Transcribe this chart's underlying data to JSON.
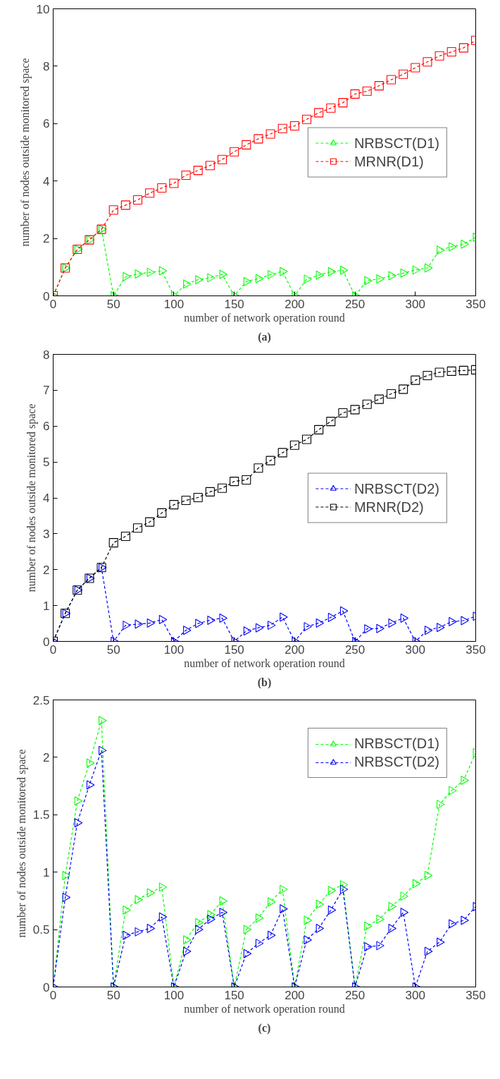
{
  "chart_data": [
    {
      "type": "line",
      "xlabel": "number of network operation round",
      "ylabel": "number of nodes outside monitored space",
      "annotations": [
        "(a)"
      ],
      "x": [
        0,
        10,
        20,
        30,
        40,
        50,
        60,
        70,
        80,
        90,
        100,
        110,
        120,
        130,
        140,
        150,
        160,
        170,
        180,
        190,
        200,
        210,
        220,
        230,
        240,
        250,
        260,
        270,
        280,
        290,
        300,
        310,
        320,
        330,
        340,
        350
      ],
      "xlim": [
        0,
        350
      ],
      "xticks": [
        0,
        50,
        100,
        150,
        200,
        250,
        300,
        350
      ],
      "ylim": [
        0,
        10
      ],
      "yticks": [
        0,
        2,
        4,
        6,
        8,
        10
      ],
      "legend": "right",
      "line_style": "dashed",
      "grid": false,
      "series": [
        {
          "name": "NRBSCT(D1)",
          "color": "#00ff00",
          "marker": "triangle",
          "values": [
            0,
            0.97,
            1.62,
            1.95,
            2.32,
            0,
            0.67,
            0.76,
            0.82,
            0.87,
            0,
            0.41,
            0.56,
            0.63,
            0.75,
            0,
            0.5,
            0.6,
            0.74,
            0.85,
            0,
            0.58,
            0.72,
            0.84,
            0.89,
            0,
            0.53,
            0.59,
            0.7,
            0.79,
            0.9,
            0.97,
            1.59,
            1.71,
            1.8,
            2.04
          ]
        },
        {
          "name": "MRNR(D1)",
          "color": "#ff0000",
          "marker": "square",
          "values": [
            0,
            0.97,
            1.62,
            1.95,
            2.32,
            2.99,
            3.16,
            3.34,
            3.58,
            3.76,
            3.92,
            4.2,
            4.37,
            4.54,
            4.75,
            5.02,
            5.26,
            5.47,
            5.64,
            5.83,
            5.92,
            6.15,
            6.38,
            6.54,
            6.73,
            7.03,
            7.13,
            7.32,
            7.53,
            7.72,
            7.95,
            8.15,
            8.36,
            8.5,
            8.64,
            8.9
          ]
        }
      ]
    },
    {
      "type": "line",
      "xlabel": "number of network operation round",
      "ylabel": "number of nodes outside monitored space",
      "annotations": [
        "(b)"
      ],
      "x": [
        0,
        10,
        20,
        30,
        40,
        50,
        60,
        70,
        80,
        90,
        100,
        110,
        120,
        130,
        140,
        150,
        160,
        170,
        180,
        190,
        200,
        210,
        220,
        230,
        240,
        250,
        260,
        270,
        280,
        290,
        300,
        310,
        320,
        330,
        340,
        350
      ],
      "xlim": [
        0,
        350
      ],
      "xticks": [
        0,
        50,
        100,
        150,
        200,
        250,
        300,
        350
      ],
      "ylim": [
        0,
        8
      ],
      "yticks": [
        0,
        1,
        2,
        3,
        4,
        5,
        6,
        7,
        8
      ],
      "legend": "right",
      "line_style": "dashed",
      "grid": false,
      "series": [
        {
          "name": "NRBSCT(D2)",
          "color": "#0000ff",
          "marker": "triangle",
          "values": [
            0,
            0.78,
            1.43,
            1.76,
            2.06,
            0,
            0.45,
            0.48,
            0.51,
            0.61,
            0,
            0.31,
            0.5,
            0.59,
            0.65,
            0,
            0.29,
            0.38,
            0.45,
            0.68,
            0,
            0.41,
            0.51,
            0.67,
            0.85,
            0,
            0.35,
            0.36,
            0.51,
            0.65,
            0,
            0.31,
            0.39,
            0.55,
            0.58,
            0.7
          ]
        },
        {
          "name": "MRNR(D2)",
          "color": "#000000",
          "marker": "square",
          "values": [
            0,
            0.78,
            1.43,
            1.76,
            2.06,
            2.75,
            2.93,
            3.16,
            3.33,
            3.58,
            3.81,
            3.93,
            4.01,
            4.17,
            4.27,
            4.46,
            4.5,
            4.83,
            5.04,
            5.26,
            5.47,
            5.63,
            5.9,
            6.13,
            6.37,
            6.46,
            6.61,
            6.75,
            6.9,
            7.03,
            7.28,
            7.41,
            7.5,
            7.53,
            7.55,
            7.57
          ]
        }
      ]
    },
    {
      "type": "line",
      "xlabel": "number of network operation round",
      "ylabel": "number of nodes outside monitored space",
      "annotations": [
        "(c)"
      ],
      "x": [
        0,
        10,
        20,
        30,
        40,
        50,
        60,
        70,
        80,
        90,
        100,
        110,
        120,
        130,
        140,
        150,
        160,
        170,
        180,
        190,
        200,
        210,
        220,
        230,
        240,
        250,
        260,
        270,
        280,
        290,
        300,
        310,
        320,
        330,
        340,
        350
      ],
      "xlim": [
        0,
        350
      ],
      "xticks": [
        0,
        50,
        100,
        150,
        200,
        250,
        300,
        350
      ],
      "ylim": [
        0,
        2.5
      ],
      "yticks": [
        0,
        0.5,
        1,
        1.5,
        2,
        2.5
      ],
      "legend": "top right",
      "line_style": "dashed",
      "grid": false,
      "series": [
        {
          "name": "NRBSCT(D1)",
          "color": "#00ff00",
          "marker": "triangle",
          "values": [
            0,
            0.97,
            1.62,
            1.95,
            2.32,
            0,
            0.67,
            0.76,
            0.82,
            0.87,
            0,
            0.41,
            0.56,
            0.63,
            0.75,
            0,
            0.5,
            0.6,
            0.74,
            0.85,
            0,
            0.58,
            0.72,
            0.84,
            0.89,
            0,
            0.53,
            0.59,
            0.7,
            0.79,
            0.9,
            0.97,
            1.59,
            1.71,
            1.8,
            2.04
          ]
        },
        {
          "name": "NRBSCT(D2)",
          "color": "#0000ff",
          "marker": "triangle",
          "values": [
            0,
            0.78,
            1.43,
            1.76,
            2.06,
            0,
            0.45,
            0.48,
            0.51,
            0.61,
            0,
            0.31,
            0.5,
            0.59,
            0.65,
            0,
            0.29,
            0.38,
            0.45,
            0.68,
            0,
            0.41,
            0.51,
            0.67,
            0.85,
            0,
            0.35,
            0.36,
            0.51,
            0.65,
            0,
            0.31,
            0.39,
            0.55,
            0.58,
            0.7
          ]
        }
      ]
    }
  ]
}
